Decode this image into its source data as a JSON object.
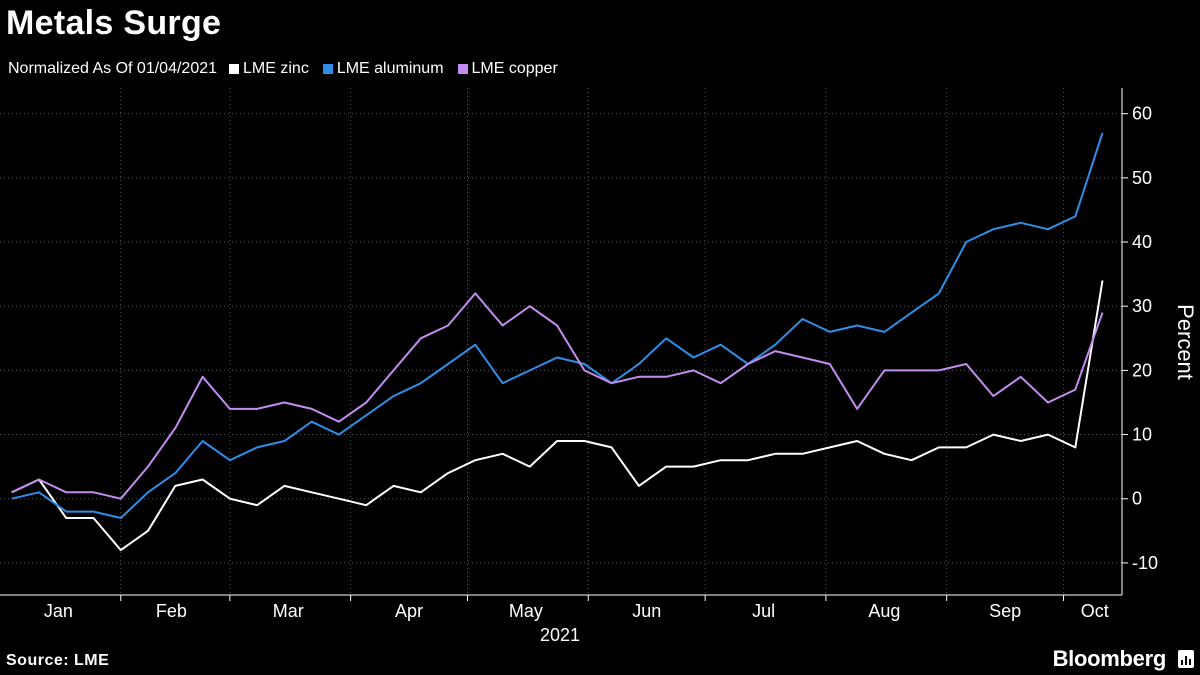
{
  "title": "Metals Surge",
  "subtitle": "Normalized As Of 01/04/2021",
  "source": "Source: LME",
  "brand": "Bloomberg",
  "chart_data": {
    "type": "line",
    "ylabel": "Percent",
    "xlabel": "",
    "year_label": "2021",
    "ylim": [
      -15,
      64
    ],
    "yticks": [
      -10,
      0,
      10,
      20,
      30,
      40,
      50,
      60
    ],
    "xticks": [
      "Jan",
      "Feb",
      "Mar",
      "Apr",
      "May",
      "Jun",
      "Jul",
      "Aug",
      "Sep",
      "Oct"
    ],
    "x": [
      "2021-01-04",
      "2021-01-11",
      "2021-01-18",
      "2021-01-25",
      "2021-02-01",
      "2021-02-08",
      "2021-02-15",
      "2021-02-22",
      "2021-03-01",
      "2021-03-08",
      "2021-03-15",
      "2021-03-22",
      "2021-03-29",
      "2021-04-05",
      "2021-04-12",
      "2021-04-19",
      "2021-04-26",
      "2021-05-03",
      "2021-05-10",
      "2021-05-17",
      "2021-05-24",
      "2021-05-31",
      "2021-06-07",
      "2021-06-14",
      "2021-06-21",
      "2021-06-28",
      "2021-07-05",
      "2021-07-12",
      "2021-07-19",
      "2021-07-26",
      "2021-08-02",
      "2021-08-09",
      "2021-08-16",
      "2021-08-23",
      "2021-08-30",
      "2021-09-06",
      "2021-09-13",
      "2021-09-20",
      "2021-09-27",
      "2021-10-04",
      "2021-10-11"
    ],
    "grid": true,
    "legend_position": "top-left",
    "series": [
      {
        "name": "LME zinc",
        "color": "#ffffff",
        "values": [
          1,
          3,
          -3,
          -3,
          -8,
          -5,
          2,
          3,
          0,
          -1,
          2,
          1,
          0,
          -1,
          2,
          1,
          4,
          6,
          7,
          5,
          9,
          9,
          8,
          2,
          5,
          5,
          6,
          6,
          7,
          7,
          8,
          9,
          7,
          6,
          8,
          8,
          10,
          9,
          10,
          8,
          34
        ]
      },
      {
        "name": "LME aluminum",
        "color": "#2e8ee8",
        "values": [
          0,
          1,
          -2,
          -2,
          -3,
          1,
          4,
          9,
          6,
          8,
          9,
          12,
          10,
          13,
          16,
          18,
          21,
          24,
          18,
          20,
          22,
          21,
          18,
          21,
          25,
          22,
          24,
          21,
          24,
          28,
          26,
          27,
          26,
          29,
          32,
          40,
          42,
          43,
          42,
          44,
          57
        ]
      },
      {
        "name": "LME copper",
        "color": "#c38cf0",
        "values": [
          1,
          3,
          1,
          1,
          0,
          5,
          11,
          19,
          14,
          14,
          15,
          14,
          12,
          15,
          20,
          25,
          27,
          32,
          27,
          30,
          27,
          20,
          18,
          19,
          19,
          20,
          18,
          21,
          23,
          22,
          21,
          14,
          20,
          20,
          20,
          21,
          16,
          19,
          15,
          17,
          29
        ]
      }
    ]
  }
}
